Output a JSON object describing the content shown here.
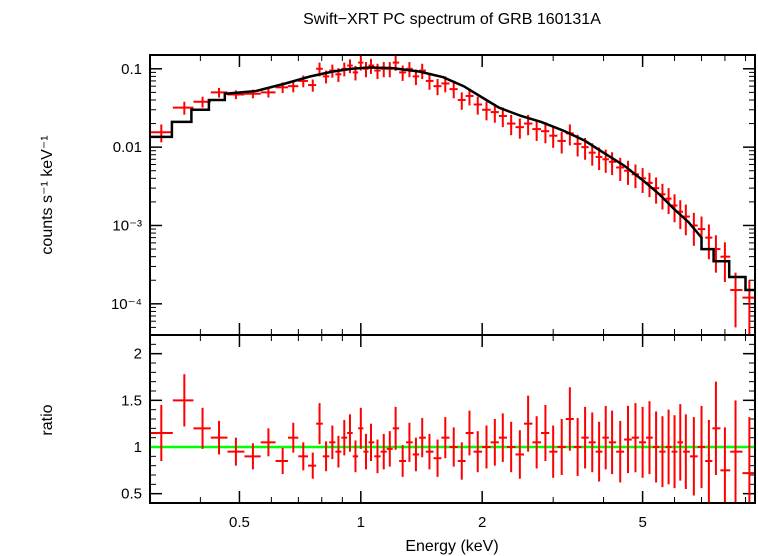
{
  "chart_data": [
    {
      "type": "scatter",
      "title": "Swift−XRT PC spectrum of GRB 160131A",
      "ylabel": "counts s⁻¹ keV⁻¹",
      "xlabel": "",
      "xscale": "log",
      "yscale": "log",
      "xlim": [
        0.3,
        9.5
      ],
      "ylim": [
        4e-05,
        0.15
      ],
      "ytick_labels": [
        "0.1",
        "0.01",
        "10⁻³",
        "10⁻⁴"
      ],
      "ytick_values": [
        0.1,
        0.01,
        0.001,
        0.0001
      ],
      "series": [
        {
          "kind": "data",
          "color": "#ff0000",
          "x": [
            0.32,
            0.365,
            0.405,
            0.445,
            0.49,
            0.54,
            0.59,
            0.64,
            0.68,
            0.72,
            0.76,
            0.79,
            0.82,
            0.85,
            0.88,
            0.91,
            0.94,
            0.97,
            1.0,
            1.03,
            1.06,
            1.1,
            1.14,
            1.18,
            1.22,
            1.27,
            1.32,
            1.37,
            1.42,
            1.48,
            1.55,
            1.62,
            1.7,
            1.78,
            1.86,
            1.95,
            2.05,
            2.15,
            2.25,
            2.36,
            2.48,
            2.6,
            2.73,
            2.87,
            3.0,
            3.15,
            3.3,
            3.45,
            3.6,
            3.75,
            3.9,
            4.05,
            4.2,
            4.4,
            4.6,
            4.8,
            5.0,
            5.2,
            5.4,
            5.6,
            5.8,
            6.0,
            6.2,
            6.4,
            6.7,
            7.0,
            7.3,
            7.6,
            8.0,
            8.5,
            9.2
          ],
          "y": [
            0.0155,
            0.032,
            0.038,
            0.05,
            0.047,
            0.048,
            0.05,
            0.058,
            0.06,
            0.07,
            0.062,
            0.1,
            0.08,
            0.095,
            0.085,
            0.1,
            0.11,
            0.09,
            0.12,
            0.1,
            0.11,
            0.095,
            0.1,
            0.1,
            0.12,
            0.09,
            0.1,
            0.08,
            0.095,
            0.07,
            0.06,
            0.065,
            0.055,
            0.04,
            0.045,
            0.035,
            0.03,
            0.028,
            0.025,
            0.02,
            0.018,
            0.02,
            0.017,
            0.016,
            0.014,
            0.012,
            0.015,
            0.011,
            0.01,
            0.0085,
            0.0075,
            0.007,
            0.0065,
            0.0055,
            0.005,
            0.0045,
            0.004,
            0.0035,
            0.003,
            0.0025,
            0.0022,
            0.0018,
            0.0015,
            0.0013,
            0.001,
            0.0009,
            0.0007,
            0.0005,
            0.0004,
            0.00015,
            0.00012
          ],
          "yerr": [
            0.004,
            0.006,
            0.006,
            0.007,
            0.006,
            0.006,
            0.007,
            0.009,
            0.01,
            0.012,
            0.011,
            0.02,
            0.015,
            0.018,
            0.017,
            0.02,
            0.022,
            0.019,
            0.025,
            0.022,
            0.024,
            0.021,
            0.022,
            0.022,
            0.026,
            0.02,
            0.022,
            0.018,
            0.021,
            0.016,
            0.014,
            0.015,
            0.013,
            0.01,
            0.011,
            0.009,
            0.008,
            0.0075,
            0.007,
            0.0058,
            0.0052,
            0.0058,
            0.005,
            0.0048,
            0.0042,
            0.0037,
            0.0045,
            0.0034,
            0.0031,
            0.0027,
            0.0024,
            0.0023,
            0.0021,
            0.0018,
            0.0017,
            0.0015,
            0.0014,
            0.0012,
            0.0011,
            0.0009,
            0.0008,
            0.0007,
            0.0006,
            0.00055,
            0.00045,
            0.0004,
            0.00033,
            0.00025,
            0.00021,
            0.0001,
            8e-05
          ]
        },
        {
          "kind": "model",
          "color": "#000000",
          "x": [
            0.3,
            0.34,
            0.34,
            0.38,
            0.38,
            0.42,
            0.42,
            0.46,
            0.46,
            0.55,
            0.65,
            0.75,
            0.85,
            0.95,
            1.05,
            1.2,
            1.4,
            1.6,
            1.8,
            2.0,
            2.2,
            2.5,
            2.8,
            3.2,
            3.6,
            4.0,
            4.5,
            5.0,
            5.5,
            6.0,
            6.5,
            7.0,
            7.0,
            7.5,
            7.5,
            8.2,
            8.2,
            9.0,
            9.0,
            9.5
          ],
          "y": [
            0.0135,
            0.0135,
            0.021,
            0.021,
            0.03,
            0.03,
            0.04,
            0.04,
            0.048,
            0.052,
            0.065,
            0.08,
            0.092,
            0.1,
            0.104,
            0.102,
            0.092,
            0.078,
            0.06,
            0.043,
            0.032,
            0.025,
            0.021,
            0.016,
            0.012,
            0.0085,
            0.0058,
            0.0038,
            0.0025,
            0.0016,
            0.0011,
            0.0007,
            0.0005,
            0.0005,
            0.00035,
            0.00035,
            0.00022,
            0.00022,
            0.00015,
            0.00015
          ]
        }
      ]
    },
    {
      "type": "scatter",
      "xlabel": "Energy (keV)",
      "ylabel": "ratio",
      "xscale": "log",
      "xlim": [
        0.3,
        9.5
      ],
      "ylim": [
        0.4,
        2.2
      ],
      "xtick_labels": [
        "0.5",
        "1",
        "2",
        "5"
      ],
      "xtick_values": [
        0.5,
        1,
        2,
        5
      ],
      "ytick_labels": [
        "0.5",
        "1",
        "1.5",
        "2"
      ],
      "ytick_values": [
        0.5,
        1,
        1.5,
        2
      ],
      "reference_line": {
        "y": 1,
        "color": "#00ff00"
      },
      "series": [
        {
          "kind": "ratio",
          "color": "#ff0000",
          "x": [
            0.32,
            0.365,
            0.405,
            0.445,
            0.49,
            0.54,
            0.59,
            0.64,
            0.68,
            0.72,
            0.76,
            0.79,
            0.82,
            0.85,
            0.88,
            0.91,
            0.94,
            0.97,
            1.0,
            1.03,
            1.06,
            1.1,
            1.14,
            1.18,
            1.22,
            1.27,
            1.32,
            1.37,
            1.42,
            1.48,
            1.55,
            1.62,
            1.7,
            1.78,
            1.86,
            1.95,
            2.05,
            2.15,
            2.25,
            2.36,
            2.48,
            2.6,
            2.73,
            2.87,
            3.0,
            3.15,
            3.3,
            3.45,
            3.6,
            3.75,
            3.9,
            4.05,
            4.2,
            4.4,
            4.6,
            4.8,
            5.0,
            5.2,
            5.4,
            5.6,
            5.8,
            6.0,
            6.2,
            6.4,
            6.7,
            7.0,
            7.3,
            7.6,
            8.0,
            8.5,
            9.2
          ],
          "y": [
            1.15,
            1.5,
            1.2,
            1.1,
            0.95,
            0.9,
            1.05,
            0.85,
            1.1,
            0.9,
            0.8,
            1.25,
            0.9,
            1.05,
            0.95,
            1.1,
            1.15,
            0.9,
            1.2,
            0.95,
            1.05,
            0.9,
            0.95,
            0.98,
            1.2,
            0.85,
            1.05,
            0.92,
            1.1,
            0.95,
            0.88,
            1.1,
            1.0,
            0.85,
            1.15,
            0.95,
            1.0,
            1.05,
            1.1,
            1.0,
            0.92,
            1.25,
            1.05,
            1.15,
            0.95,
            1.0,
            1.3,
            1.0,
            1.1,
            1.05,
            0.95,
            1.1,
            1.05,
            0.95,
            1.08,
            1.1,
            1.05,
            1.1,
            1.0,
            0.95,
            1.0,
            0.95,
            1.05,
            0.95,
            0.9,
            1.0,
            0.85,
            1.2,
            0.75,
            0.95,
            0.72
          ],
          "yerr": [
            0.3,
            0.28,
            0.22,
            0.18,
            0.15,
            0.14,
            0.15,
            0.14,
            0.16,
            0.15,
            0.14,
            0.22,
            0.16,
            0.18,
            0.17,
            0.19,
            0.2,
            0.17,
            0.22,
            0.19,
            0.2,
            0.18,
            0.19,
            0.19,
            0.23,
            0.17,
            0.21,
            0.18,
            0.21,
            0.19,
            0.2,
            0.22,
            0.21,
            0.2,
            0.24,
            0.22,
            0.23,
            0.25,
            0.26,
            0.27,
            0.26,
            0.3,
            0.28,
            0.3,
            0.28,
            0.3,
            0.34,
            0.31,
            0.33,
            0.32,
            0.32,
            0.34,
            0.34,
            0.33,
            0.36,
            0.37,
            0.38,
            0.39,
            0.38,
            0.38,
            0.4,
            0.39,
            0.41,
            0.4,
            0.42,
            0.44,
            0.44,
            0.5,
            0.46,
            0.55,
            0.6
          ]
        }
      ]
    }
  ]
}
